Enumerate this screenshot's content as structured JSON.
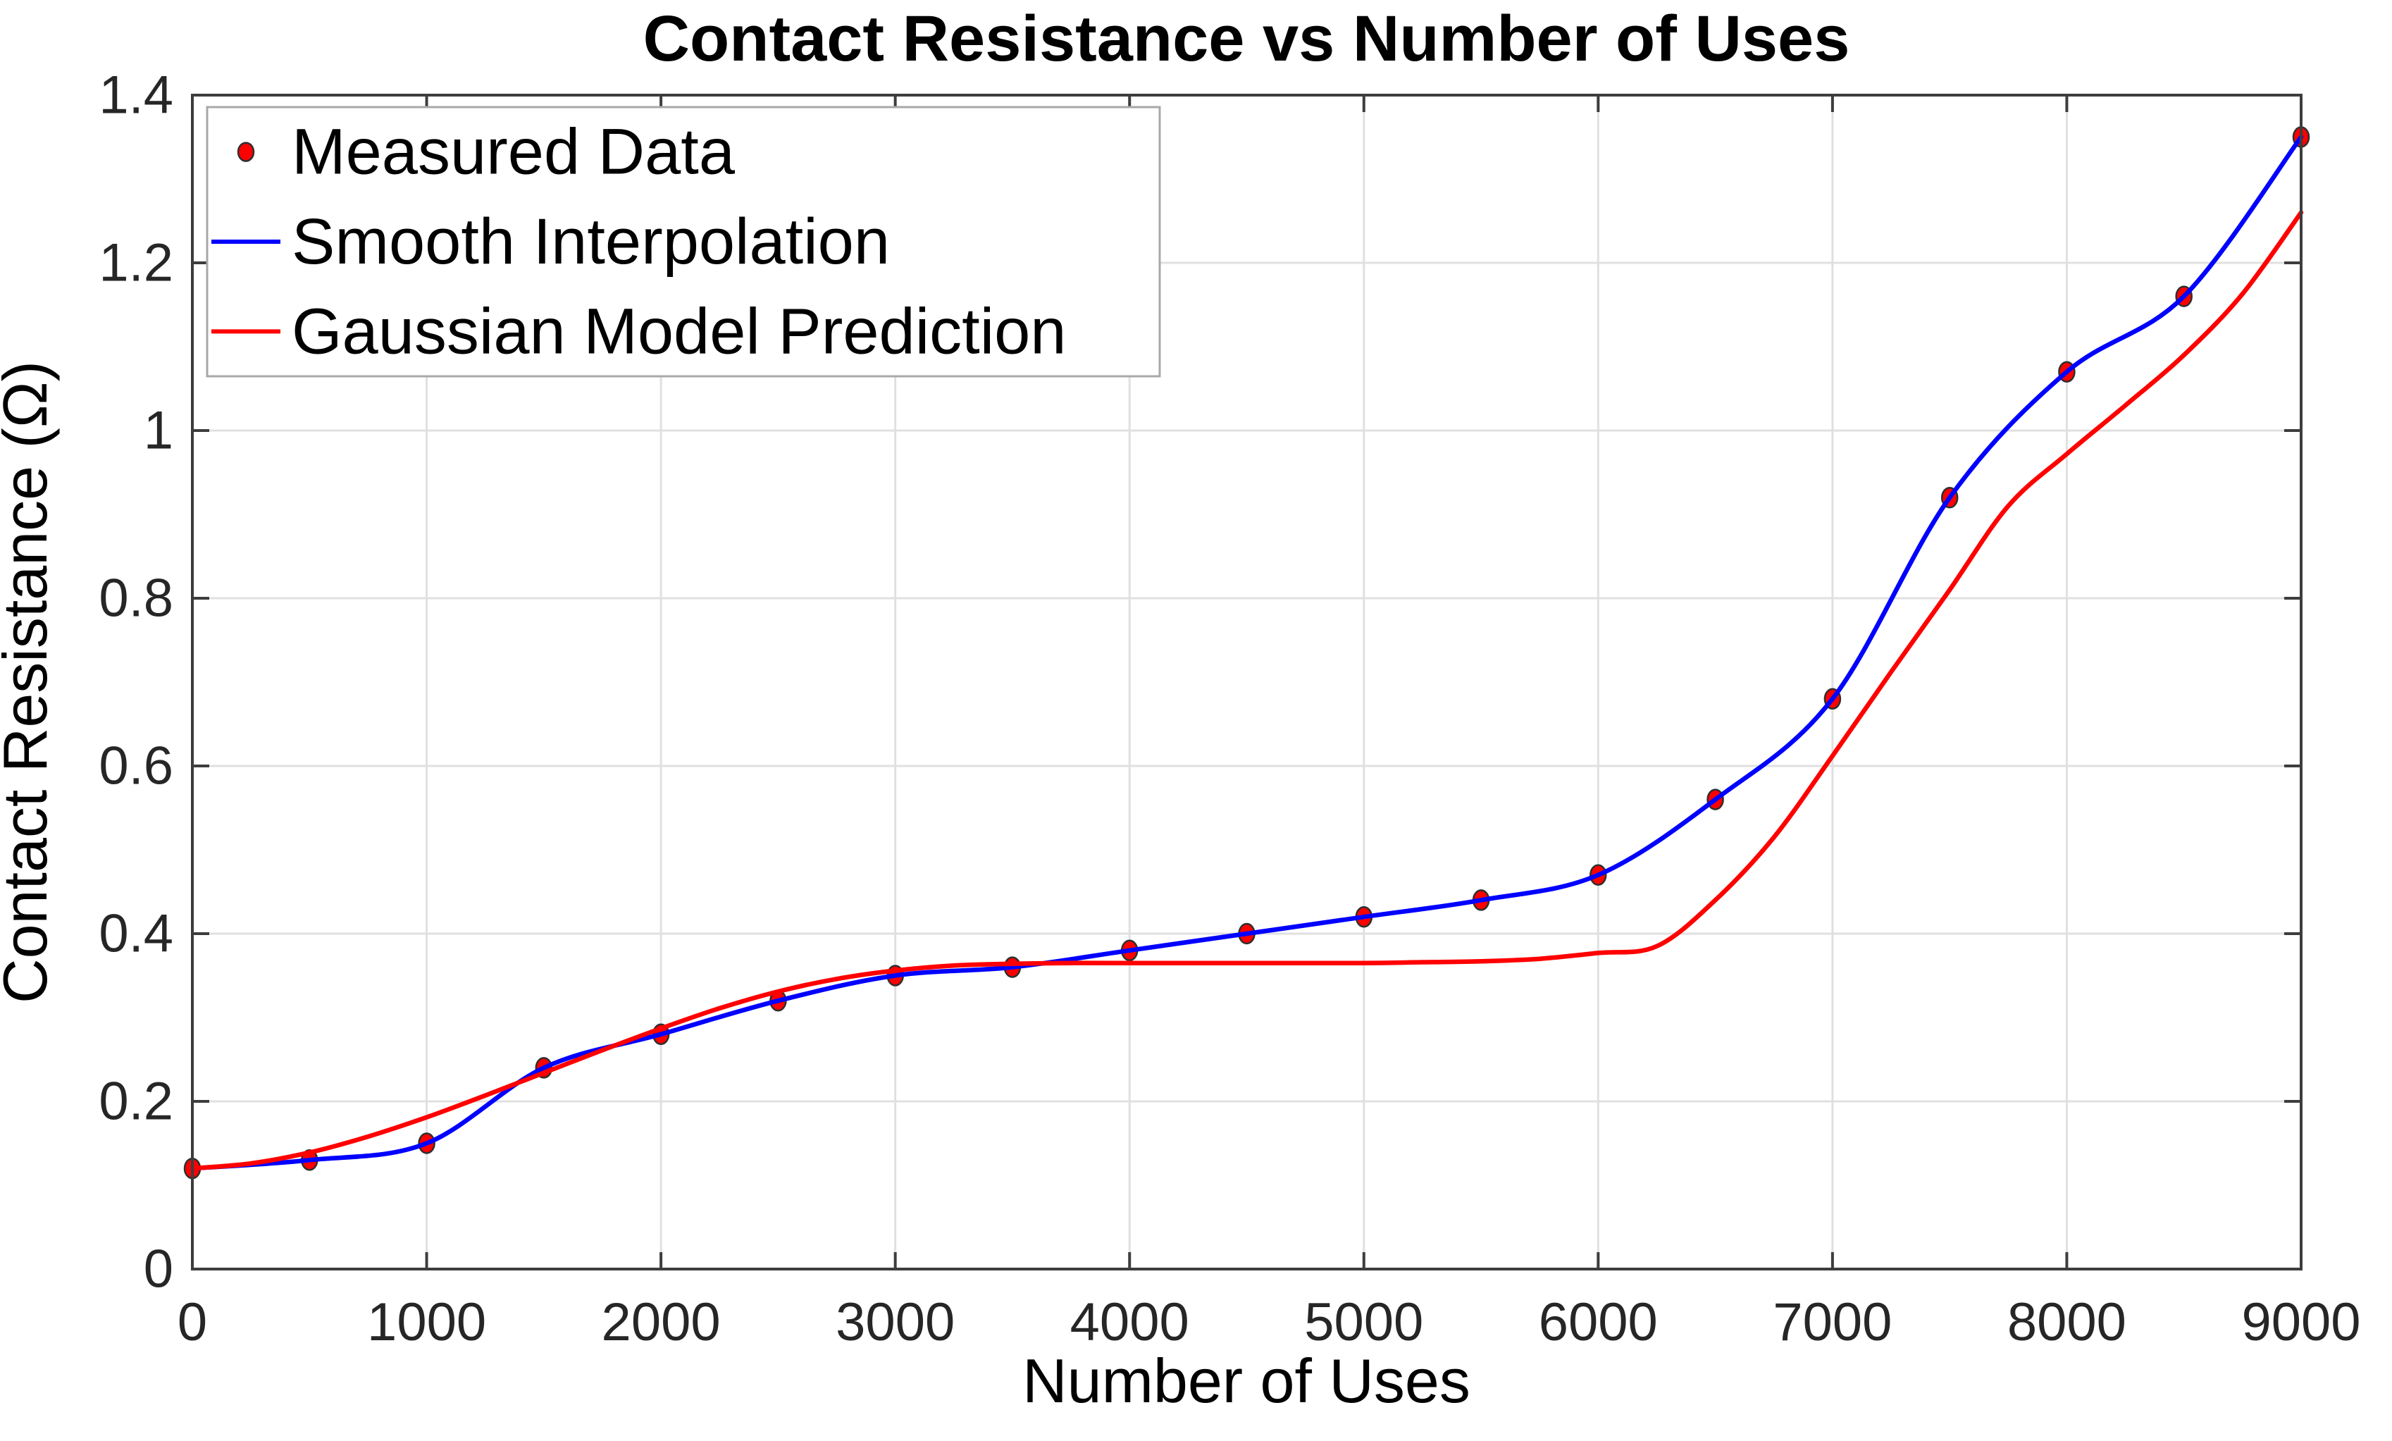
{
  "figure": {
    "background": "#ffffff"
  },
  "chart_data": {
    "type": "line",
    "title": "Contact Resistance vs Number of Uses",
    "xlabel": "Number of Uses",
    "ylabel": "Contact Resistance (Ω)",
    "xlim": [
      0,
      9000
    ],
    "ylim": [
      0,
      1.4
    ],
    "grid": true,
    "xticks": {
      "values": [
        0,
        1000,
        2000,
        3000,
        4000,
        5000,
        6000,
        7000,
        8000,
        9000
      ],
      "labels": [
        "0",
        "1000",
        "2000",
        "3000",
        "4000",
        "5000",
        "6000",
        "7000",
        "8000",
        "9000"
      ]
    },
    "yticks": {
      "values": [
        0,
        0.2,
        0.4,
        0.6,
        0.8,
        1.0,
        1.2,
        1.4
      ],
      "labels": [
        "0",
        "0.2",
        "0.4",
        "0.6",
        "0.8",
        "1",
        "1.2",
        "1.4"
      ]
    },
    "legend": {
      "position": "northwest",
      "entries": [
        {
          "label": "Measured Data",
          "marker": "dot",
          "color": "#ff0000"
        },
        {
          "label": "Smooth Interpolation",
          "marker": "line",
          "color": "#0000ff"
        },
        {
          "label": "Gaussian Model Prediction",
          "marker": "line",
          "color": "#ff0000"
        }
      ]
    },
    "series": [
      {
        "name": "Measured Data",
        "type": "scatter",
        "color": "#ff0000",
        "marker_edge": "#2f2f2f",
        "x": [
          0,
          500,
          1000,
          1500,
          2000,
          2500,
          3000,
          3500,
          4000,
          4500,
          5000,
          5500,
          6000,
          6500,
          7000,
          7500,
          8000,
          8500,
          9000
        ],
        "y": [
          0.12,
          0.13,
          0.15,
          0.24,
          0.28,
          0.32,
          0.35,
          0.36,
          0.38,
          0.4,
          0.42,
          0.44,
          0.47,
          0.56,
          0.68,
          0.92,
          1.07,
          1.16,
          1.35
        ]
      },
      {
        "name": "Smooth Interpolation",
        "type": "spline",
        "color": "#0000ff",
        "x": [
          0,
          500,
          1000,
          1500,
          2000,
          2500,
          3000,
          3500,
          4000,
          4500,
          5000,
          5500,
          6000,
          6500,
          7000,
          7500,
          8000,
          8500,
          9000
        ],
        "y": [
          0.12,
          0.13,
          0.15,
          0.24,
          0.28,
          0.32,
          0.35,
          0.36,
          0.38,
          0.4,
          0.42,
          0.44,
          0.47,
          0.56,
          0.68,
          0.92,
          1.07,
          1.16,
          1.35
        ]
      },
      {
        "name": "Gaussian Model Prediction",
        "type": "spline",
        "color": "#ff0000",
        "x": [
          0,
          250,
          500,
          750,
          1000,
          1250,
          1500,
          1750,
          2000,
          2250,
          2500,
          2750,
          3000,
          3250,
          3500,
          3750,
          4000,
          4500,
          5000,
          5250,
          5500,
          5750,
          6000,
          6250,
          6500,
          6750,
          7000,
          7250,
          7500,
          7750,
          8000,
          8250,
          8500,
          8750,
          9000
        ],
        "y": [
          0.12,
          0.126,
          0.139,
          0.158,
          0.181,
          0.207,
          0.234,
          0.261,
          0.287,
          0.311,
          0.331,
          0.346,
          0.356,
          0.362,
          0.364,
          0.365,
          0.365,
          0.365,
          0.365,
          0.366,
          0.367,
          0.37,
          0.377,
          0.385,
          0.44,
          0.515,
          0.612,
          0.712,
          0.81,
          0.91,
          0.972,
          1.03,
          1.09,
          1.163,
          1.26
        ]
      }
    ]
  }
}
